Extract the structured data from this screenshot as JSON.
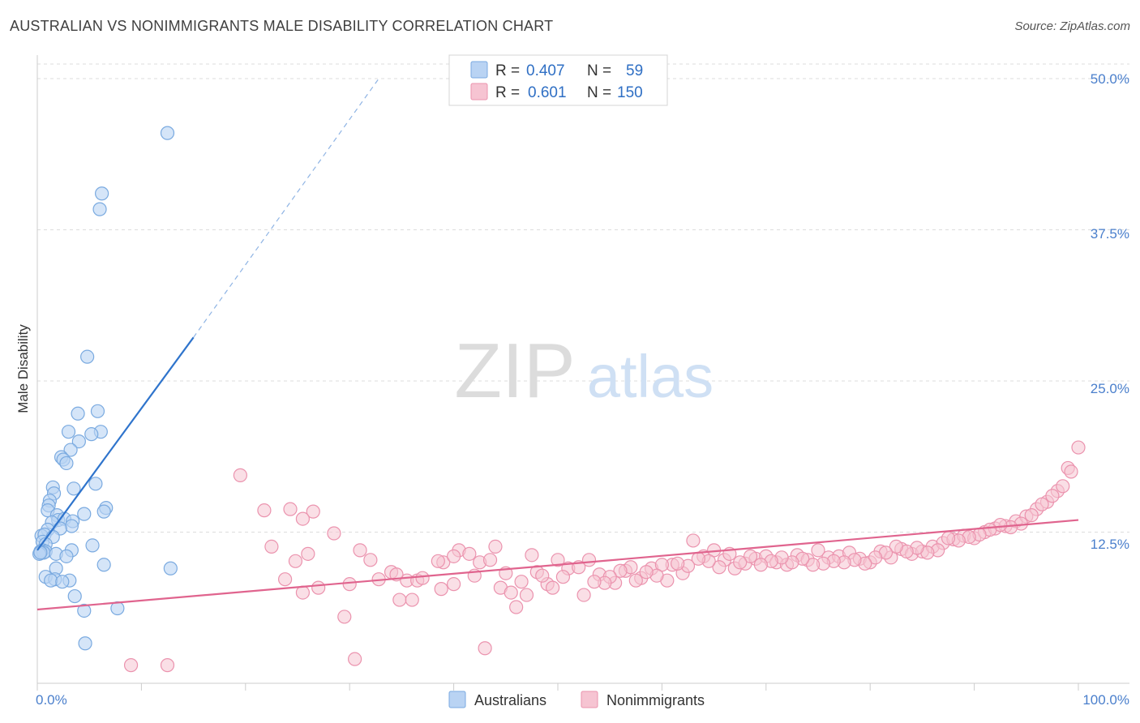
{
  "header": {
    "title": "AUSTRALIAN VS NONIMMIGRANTS MALE DISABILITY CORRELATION CHART",
    "source": "Source: ZipAtlas.com"
  },
  "watermark": {
    "zip": "ZIP",
    "atlas": "atlas"
  },
  "colors": {
    "blue_fill": "#b9d3f3",
    "blue_stroke": "#7aaae0",
    "blue_line": "#2f74cc",
    "pink_fill": "#f6c4d2",
    "pink_stroke": "#eb93ae",
    "pink_line": "#e0648e",
    "tick_label": "#4a7fcc",
    "grid": "#dddddd"
  },
  "legend": {
    "rows": [
      {
        "r_label": "R =",
        "r_value": "0.407",
        "n_label": "N =",
        "n_value": "59"
      },
      {
        "r_label": "R =",
        "r_value": "0.601",
        "n_label": "N =",
        "n_value": "150"
      }
    ]
  },
  "bottom_legend": [
    "Australians",
    "Nonimmigrants"
  ],
  "chart_data": {
    "type": "scatter",
    "title": "AUSTRALIAN VS NONIMMIGRANTS MALE DISABILITY CORRELATION CHART",
    "xlabel": "",
    "ylabel": "Male Disability",
    "xlim": [
      0,
      100
    ],
    "ylim": [
      0,
      50
    ],
    "x_tick_labels": [
      "0.0%",
      "100.0%"
    ],
    "y_ticks": [
      12.5,
      25.0,
      37.5,
      50.0
    ],
    "y_tick_labels": [
      "12.5%",
      "25.0%",
      "37.5%",
      "50.0%"
    ],
    "grid": "horizontal dashed",
    "legend_position": "top-center",
    "series": [
      {
        "name": "Australians",
        "r": 0.407,
        "n": 59,
        "trend": {
          "x": [
            0,
            15
          ],
          "y": [
            11.0,
            28.6
          ],
          "extension_to": [
            32.8,
            50
          ]
        },
        "points": [
          [
            12.5,
            45.5
          ],
          [
            6.2,
            40.5
          ],
          [
            6.0,
            39.2
          ],
          [
            4.8,
            27.0
          ],
          [
            5.8,
            22.5
          ],
          [
            3.9,
            22.3
          ],
          [
            6.1,
            20.8
          ],
          [
            3.0,
            20.8
          ],
          [
            5.2,
            20.6
          ],
          [
            4.0,
            20.0
          ],
          [
            3.2,
            19.3
          ],
          [
            2.3,
            18.7
          ],
          [
            2.5,
            18.5
          ],
          [
            2.8,
            18.2
          ],
          [
            5.6,
            16.5
          ],
          [
            1.5,
            16.2
          ],
          [
            3.5,
            16.1
          ],
          [
            1.6,
            15.7
          ],
          [
            1.2,
            15.1
          ],
          [
            1.1,
            14.7
          ],
          [
            6.6,
            14.5
          ],
          [
            1.0,
            14.3
          ],
          [
            6.4,
            14.2
          ],
          [
            4.5,
            14.0
          ],
          [
            1.9,
            13.9
          ],
          [
            2.0,
            13.5
          ],
          [
            2.6,
            13.6
          ],
          [
            3.4,
            13.4
          ],
          [
            1.4,
            13.3
          ],
          [
            3.3,
            13.0
          ],
          [
            2.2,
            12.8
          ],
          [
            1.0,
            12.7
          ],
          [
            0.4,
            12.2
          ],
          [
            0.7,
            12.3
          ],
          [
            1.5,
            12.1
          ],
          [
            0.5,
            11.7
          ],
          [
            0.8,
            11.5
          ],
          [
            5.3,
            11.4
          ],
          [
            3.3,
            11.0
          ],
          [
            0.5,
            11.0
          ],
          [
            0.8,
            10.9
          ],
          [
            0.3,
            10.9
          ],
          [
            0.6,
            10.8
          ],
          [
            0.2,
            10.7
          ],
          [
            1.8,
            10.7
          ],
          [
            2.8,
            10.5
          ],
          [
            0.3,
            10.8
          ],
          [
            6.4,
            9.8
          ],
          [
            12.8,
            9.5
          ],
          [
            1.8,
            9.5
          ],
          [
            0.8,
            8.8
          ],
          [
            1.7,
            8.6
          ],
          [
            1.3,
            8.5
          ],
          [
            3.1,
            8.5
          ],
          [
            2.4,
            8.4
          ],
          [
            3.6,
            7.2
          ],
          [
            7.7,
            6.2
          ],
          [
            4.5,
            6.0
          ],
          [
            4.6,
            3.3
          ]
        ]
      },
      {
        "name": "Nonimmigrants",
        "r": 0.601,
        "n": 150,
        "trend": {
          "x": [
            0,
            100
          ],
          "y": [
            6.1,
            13.5
          ]
        },
        "points": [
          [
            9.0,
            1.5
          ],
          [
            12.5,
            1.5
          ],
          [
            19.5,
            17.2
          ],
          [
            21.8,
            14.3
          ],
          [
            24.3,
            14.4
          ],
          [
            26.5,
            14.2
          ],
          [
            22.5,
            11.3
          ],
          [
            26.0,
            10.7
          ],
          [
            25.5,
            13.6
          ],
          [
            28.5,
            12.4
          ],
          [
            31.0,
            11.0
          ],
          [
            32.0,
            10.2
          ],
          [
            29.5,
            5.5
          ],
          [
            30.0,
            8.2
          ],
          [
            30.5,
            2.0
          ],
          [
            34.0,
            9.2
          ],
          [
            35.5,
            8.5
          ],
          [
            39.0,
            10.0
          ],
          [
            38.5,
            10.1
          ],
          [
            36.5,
            8.5
          ],
          [
            34.8,
            6.9
          ],
          [
            32.8,
            8.6
          ],
          [
            27.0,
            7.9
          ],
          [
            24.8,
            10.1
          ],
          [
            23.8,
            8.6
          ],
          [
            25.5,
            7.5
          ],
          [
            36.0,
            6.9
          ],
          [
            42.5,
            10.0
          ],
          [
            43.5,
            10.2
          ],
          [
            45.0,
            9.1
          ],
          [
            48.0,
            9.2
          ],
          [
            49.0,
            8.2
          ],
          [
            40.5,
            11.0
          ],
          [
            44.0,
            11.3
          ],
          [
            47.5,
            10.6
          ],
          [
            42.0,
            8.9
          ],
          [
            41.5,
            10.7
          ],
          [
            38.8,
            7.8
          ],
          [
            40.0,
            8.2
          ],
          [
            44.5,
            7.9
          ],
          [
            46.0,
            6.3
          ],
          [
            49.5,
            7.9
          ],
          [
            51.0,
            9.5
          ],
          [
            53.0,
            10.2
          ],
          [
            54.0,
            9.0
          ],
          [
            55.5,
            8.3
          ],
          [
            56.5,
            9.3
          ],
          [
            52.5,
            7.3
          ],
          [
            57.0,
            9.6
          ],
          [
            58.0,
            8.7
          ],
          [
            59.0,
            9.5
          ],
          [
            60.5,
            8.5
          ],
          [
            61.0,
            9.8
          ],
          [
            62.0,
            9.1
          ],
          [
            63.0,
            11.8
          ],
          [
            64.0,
            10.5
          ],
          [
            65.0,
            11.0
          ],
          [
            66.0,
            10.2
          ],
          [
            67.0,
            9.5
          ],
          [
            68.0,
            9.9
          ],
          [
            69.0,
            10.3
          ],
          [
            70.0,
            10.5
          ],
          [
            71.0,
            10.0
          ],
          [
            72.0,
            9.8
          ],
          [
            73.0,
            10.6
          ],
          [
            74.0,
            10.2
          ],
          [
            75.0,
            11.0
          ],
          [
            76.0,
            10.4
          ],
          [
            77.0,
            10.5
          ],
          [
            78.0,
            10.8
          ],
          [
            79.0,
            10.3
          ],
          [
            80.0,
            10.0
          ],
          [
            81.0,
            10.9
          ],
          [
            82.0,
            10.4
          ],
          [
            83.0,
            11.1
          ],
          [
            84.0,
            10.7
          ],
          [
            85.0,
            10.9
          ],
          [
            86.0,
            11.3
          ],
          [
            87.0,
            11.6
          ],
          [
            88.0,
            11.9
          ],
          [
            89.0,
            12.2
          ],
          [
            90.0,
            12.0
          ],
          [
            91.0,
            12.5
          ],
          [
            92.0,
            12.8
          ],
          [
            93.0,
            13.0
          ],
          [
            94.0,
            13.4
          ],
          [
            95.0,
            13.8
          ],
          [
            96.0,
            14.4
          ],
          [
            97.0,
            15.0
          ],
          [
            98.0,
            15.9
          ],
          [
            99.0,
            17.8
          ],
          [
            100.0,
            19.5
          ],
          [
            99.3,
            17.5
          ],
          [
            98.5,
            16.3
          ],
          [
            97.5,
            15.5
          ],
          [
            96.5,
            14.8
          ],
          [
            95.5,
            13.9
          ],
          [
            94.5,
            13.2
          ],
          [
            93.5,
            12.9
          ],
          [
            92.5,
            13.1
          ],
          [
            91.5,
            12.7
          ],
          [
            90.5,
            12.3
          ],
          [
            89.5,
            12.1
          ],
          [
            88.5,
            11.8
          ],
          [
            87.5,
            12.0
          ],
          [
            86.5,
            11.0
          ],
          [
            85.5,
            10.8
          ],
          [
            84.5,
            11.2
          ],
          [
            83.5,
            10.9
          ],
          [
            82.5,
            11.3
          ],
          [
            81.5,
            10.8
          ],
          [
            80.5,
            10.4
          ],
          [
            79.5,
            9.9
          ],
          [
            78.5,
            10.2
          ],
          [
            77.5,
            10.0
          ],
          [
            76.5,
            10.1
          ],
          [
            75.5,
            9.9
          ],
          [
            74.5,
            9.8
          ],
          [
            73.5,
            10.3
          ],
          [
            72.5,
            10.0
          ],
          [
            71.5,
            10.4
          ],
          [
            70.5,
            10.1
          ],
          [
            69.5,
            9.8
          ],
          [
            68.5,
            10.5
          ],
          [
            67.5,
            10.0
          ],
          [
            66.5,
            10.7
          ],
          [
            65.5,
            9.6
          ],
          [
            64.5,
            10.1
          ],
          [
            63.5,
            10.3
          ],
          [
            62.5,
            9.7
          ],
          [
            61.5,
            9.9
          ],
          [
            60.0,
            9.8
          ],
          [
            59.5,
            8.9
          ],
          [
            58.5,
            9.2
          ],
          [
            57.5,
            8.5
          ],
          [
            56.0,
            9.3
          ],
          [
            55.0,
            8.8
          ],
          [
            54.5,
            8.3
          ],
          [
            53.5,
            8.4
          ],
          [
            52.0,
            9.6
          ],
          [
            50.5,
            8.8
          ],
          [
            50.0,
            10.2
          ],
          [
            48.5,
            8.9
          ],
          [
            47.0,
            7.3
          ],
          [
            46.5,
            8.4
          ],
          [
            45.5,
            7.5
          ],
          [
            43.0,
            2.9
          ],
          [
            40.0,
            10.5
          ],
          [
            37.0,
            8.7
          ],
          [
            34.5,
            9.0
          ]
        ]
      }
    ]
  }
}
